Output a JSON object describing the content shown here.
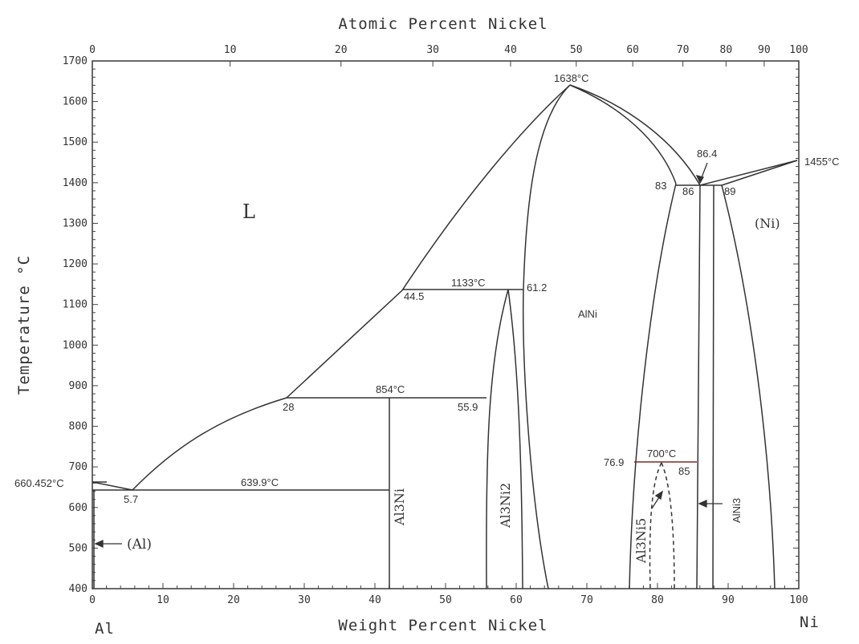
{
  "axes": {
    "top_title": "Atomic Percent Nickel",
    "bottom_title": "Weight Percent Nickel",
    "left_title": "Temperature °C",
    "left_end": "Al",
    "right_end": "Ni",
    "temperature_ticks": [
      "400",
      "500",
      "600",
      "700",
      "800",
      "900",
      "1000",
      "1100",
      "1200",
      "1300",
      "1400",
      "1500",
      "1600",
      "1700"
    ],
    "weight_ticks": [
      "0",
      "10",
      "20",
      "30",
      "40",
      "50",
      "60",
      "70",
      "80",
      "90",
      "100"
    ],
    "atomic_ticks": [
      {
        "label": "0",
        "wt": 0
      },
      {
        "label": "10",
        "wt": 19.5
      },
      {
        "label": "20",
        "wt": 35.2
      },
      {
        "label": "30",
        "wt": 48.2
      },
      {
        "label": "40",
        "wt": 59.2
      },
      {
        "label": "50",
        "wt": 68.5
      },
      {
        "label": "60",
        "wt": 76.5
      },
      {
        "label": "70",
        "wt": 83.6
      },
      {
        "label": "80",
        "wt": 89.7
      },
      {
        "label": "90",
        "wt": 95.1
      },
      {
        "label": "100",
        "wt": 100
      }
    ]
  },
  "phases": {
    "liquid": "L",
    "al": "(Al)",
    "ni": "(Ni)",
    "alni": "AlNi",
    "al3ni": "Al3Ni",
    "al3ni2": "Al3Ni2",
    "al3ni5": "Al3Ni5",
    "alni3": "AlNi3"
  },
  "annotations": {
    "al_melt": "660.452°C",
    "ni_melt": "1455°C",
    "alni_max": "1638°C",
    "eutectic_low": "639.9°C",
    "peritectic_854": "854°C",
    "peritectic_1133": "1133°C",
    "al3ni5_700": "700°C",
    "c_5_7": "5.7",
    "c_28": "28",
    "c_44_5": "44.5",
    "c_55_9": "55.9",
    "c_61_2": "61.2",
    "c_76_9": "76.9",
    "c_85": "85",
    "c_83": "83",
    "c_86": "86",
    "c_86_4": "86.4",
    "c_89": "89"
  },
  "colors": {
    "line": "#333333",
    "frame": "#444444",
    "isotherm_accent": "#7a2a2a"
  }
}
